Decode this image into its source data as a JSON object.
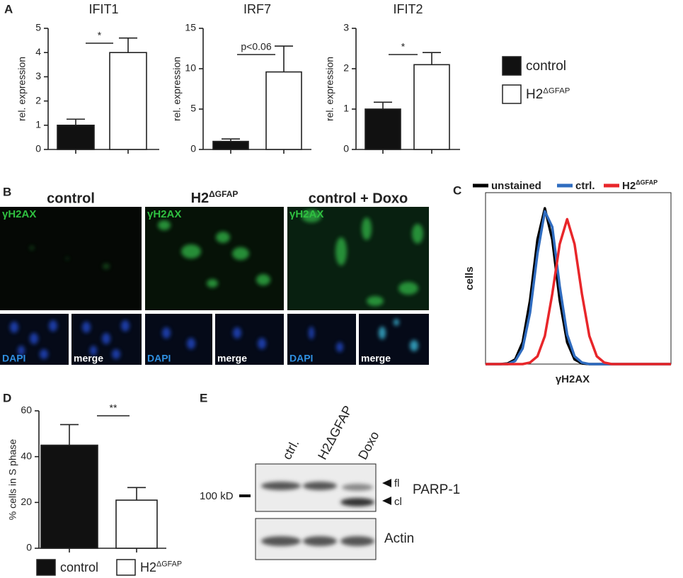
{
  "chart_data": [
    {
      "type": "bar",
      "title": "IFIT1",
      "ylabel": "rel. expression",
      "categories": [
        null,
        null
      ],
      "values": [
        1.0,
        4.0
      ],
      "errors": [
        0.25,
        0.6
      ],
      "colors": [
        "#111111",
        "#ffffff"
      ],
      "ylim": [
        0,
        5
      ],
      "yticks": [
        0,
        1,
        2,
        3,
        4,
        5
      ],
      "annotation": "*"
    },
    {
      "type": "bar",
      "title": "IRF7",
      "ylabel": "rel. expression",
      "categories": [
        null,
        null
      ],
      "values": [
        1.0,
        9.6
      ],
      "errors": [
        0.3,
        3.2
      ],
      "colors": [
        "#111111",
        "#ffffff"
      ],
      "ylim": [
        0,
        15
      ],
      "yticks": [
        0,
        5,
        10,
        15
      ],
      "annotation": "p<0.06"
    },
    {
      "type": "bar",
      "title": "IFIT2",
      "ylabel": "rel. expression",
      "categories": [
        null,
        null
      ],
      "values": [
        1.0,
        2.1
      ],
      "errors": [
        0.17,
        0.3
      ],
      "colors": [
        "#111111",
        "#ffffff"
      ],
      "ylim": [
        0,
        3
      ],
      "yticks": [
        0,
        1,
        2,
        3
      ],
      "annotation": "*"
    },
    {
      "type": "bar",
      "ylabel": "% cells in S phase",
      "categories": [
        null,
        null
      ],
      "values": [
        45,
        21
      ],
      "errors": [
        9,
        5.5
      ],
      "colors": [
        "#111111",
        "#ffffff"
      ],
      "ylim": [
        0,
        60
      ],
      "yticks": [
        0,
        20,
        40,
        60
      ],
      "annotation": "**",
      "legend": [
        {
          "name": "control",
          "color": "#111111"
        },
        {
          "name": "H2ΔGFAP",
          "color": "#ffffff"
        }
      ]
    },
    {
      "type": "line",
      "xlabel": "γH2AX",
      "ylabel": "cells",
      "log_x": true,
      "xlim": [
        1,
        100000
      ],
      "ylim": [
        0,
        110
      ],
      "x": [
        1,
        1.585,
        2.512,
        3.981,
        6.31,
        10,
        15.85,
        25.12,
        39.81,
        63.1,
        100,
        158.5,
        251.2,
        398.1,
        631,
        1000,
        1585,
        2512,
        3981,
        6310,
        10000,
        15850,
        25120,
        39810,
        63100,
        100000
      ],
      "series": [
        {
          "name": "unstained",
          "color": "#000000",
          "values": [
            0,
            0,
            0,
            0.4,
            3,
            14,
            41,
            80,
            100,
            80,
            41,
            14,
            3,
            0.4,
            0,
            0,
            0,
            0,
            0,
            0,
            0,
            0,
            0,
            0,
            0,
            0
          ]
        },
        {
          "name": "ctrl.",
          "color": "#2f6cc0",
          "values": [
            0,
            0,
            0,
            0,
            2,
            10,
            33,
            71,
            98,
            88,
            50,
            19,
            5,
            1,
            0,
            0,
            0,
            0,
            0,
            0,
            0,
            0,
            0,
            0,
            0,
            0
          ]
        },
        {
          "name": "H2ΔGFAP",
          "color": "#e8262a",
          "values": [
            0,
            0,
            0,
            0,
            0,
            0,
            1,
            5,
            18,
            45,
            77,
            93,
            77,
            45,
            18,
            5,
            1,
            0,
            0,
            0,
            0,
            0,
            0,
            0,
            0,
            0
          ]
        }
      ]
    }
  ],
  "panel_a_legend": [
    {
      "name": "control",
      "color": "#111111"
    },
    {
      "name": "H2ΔGFAP",
      "color": "#ffffff"
    }
  ],
  "panel_labels": [
    "A",
    "B",
    "C",
    "D",
    "E"
  ],
  "panel_b": {
    "columns": [
      "control",
      "H2ΔGFAP",
      "control + Doxo"
    ],
    "stain": "γH2AX",
    "dapi": "DAPI",
    "merge": "merge"
  },
  "panel_e": {
    "lanes": [
      "ctrl.",
      "H2ΔGFAP",
      "Doxo"
    ],
    "marker": "100 kD",
    "bands": [
      "fl",
      "cl"
    ],
    "proteins": [
      "PARP-1",
      "Actin"
    ]
  }
}
